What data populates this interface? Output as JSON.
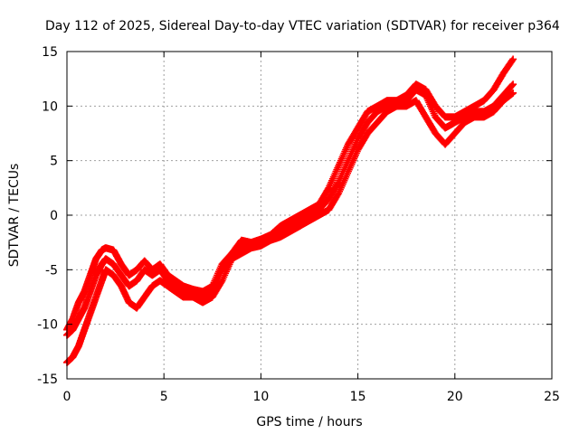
{
  "chart_data": {
    "type": "scatter",
    "title": "Day 112 of 2025, Sidereal Day-to-day VTEC variation (SDTVAR) for receiver p364",
    "xlabel": "GPS time / hours",
    "ylabel": "SDTVAR / TECUs",
    "xlim": [
      0,
      25
    ],
    "ylim": [
      -15,
      15
    ],
    "xticks": [
      "0",
      "5",
      "10",
      "15",
      "20",
      "25"
    ],
    "yticks": [
      "-15",
      "-10",
      "-5",
      "0",
      "5",
      "10",
      "15"
    ],
    "grid": true,
    "marker": "+",
    "color": "#ff0000",
    "series": [
      {
        "x": [
          0.0,
          0.3,
          0.6,
          0.9,
          1.2,
          1.5,
          1.8,
          2.0,
          2.4,
          2.8,
          3.2,
          3.6,
          4.0,
          4.4,
          4.8,
          5.2,
          5.6,
          6.0,
          6.5,
          7.0,
          7.5,
          8.0,
          8.5,
          9.0,
          9.5,
          10.0,
          10.5,
          11.0,
          11.5,
          12.0,
          12.5,
          13.0,
          13.5,
          14.0,
          14.5,
          15.0,
          15.5,
          16.0,
          16.5,
          17.0,
          17.5,
          18.0,
          18.5,
          19.0,
          19.5,
          20.0,
          20.5,
          21.0,
          21.5,
          22.0,
          22.5,
          23.0
        ],
        "y": [
          -11.0,
          -10.5,
          -9.5,
          -8.5,
          -7.0,
          -5.5,
          -4.5,
          -4.0,
          -4.5,
          -5.5,
          -6.5,
          -6.0,
          -5.0,
          -5.5,
          -5.0,
          -6.0,
          -6.5,
          -7.0,
          -7.2,
          -7.5,
          -7.0,
          -5.0,
          -4.0,
          -3.0,
          -2.8,
          -2.5,
          -2.0,
          -1.5,
          -1.0,
          -0.5,
          0.0,
          0.5,
          1.5,
          3.0,
          5.0,
          7.0,
          8.5,
          9.5,
          10.0,
          10.0,
          10.5,
          11.5,
          11.0,
          9.0,
          8.0,
          8.5,
          9.0,
          9.5,
          9.5,
          10.0,
          11.0,
          12.0
        ]
      },
      {
        "x": [
          0.0,
          0.3,
          0.6,
          0.9,
          1.2,
          1.5,
          1.8,
          2.0,
          2.4,
          2.8,
          3.2,
          3.6,
          4.0,
          4.4,
          4.8,
          5.2,
          5.6,
          6.0,
          6.5,
          7.0,
          7.5,
          8.0,
          8.5,
          9.0,
          9.5,
          10.0,
          10.5,
          11.0,
          11.5,
          12.0,
          12.5,
          13.0,
          13.5,
          14.0,
          14.5,
          15.0,
          15.5,
          16.0,
          16.5,
          17.0,
          17.5,
          18.0,
          18.5,
          19.0,
          19.5,
          20.0,
          20.5,
          21.0,
          21.5,
          22.0,
          22.5,
          23.0
        ],
        "y": [
          -13.5,
          -13.0,
          -12.0,
          -10.5,
          -9.0,
          -7.5,
          -6.0,
          -5.0,
          -5.5,
          -6.5,
          -8.0,
          -8.5,
          -7.5,
          -6.5,
          -6.0,
          -6.5,
          -7.0,
          -7.5,
          -7.5,
          -8.0,
          -7.5,
          -6.0,
          -4.0,
          -3.5,
          -3.0,
          -2.8,
          -2.3,
          -2.0,
          -1.5,
          -1.0,
          -0.5,
          0.0,
          0.5,
          2.0,
          4.0,
          6.0,
          7.5,
          8.5,
          9.5,
          10.0,
          10.0,
          10.5,
          9.0,
          7.5,
          6.5,
          7.5,
          8.5,
          9.0,
          9.0,
          9.5,
          10.5,
          11.2
        ]
      },
      {
        "x": [
          0.0,
          0.3,
          0.6,
          0.9,
          1.2,
          1.5,
          1.8,
          2.0,
          2.4,
          2.8,
          3.2,
          3.6,
          4.0,
          4.4,
          4.8,
          5.2,
          5.6,
          6.0,
          6.5,
          7.0,
          7.5,
          8.0,
          8.5,
          9.0,
          9.5,
          10.0,
          10.5,
          11.0,
          11.5,
          12.0,
          12.5,
          13.0,
          13.5,
          14.0,
          14.5,
          15.0,
          15.5,
          16.0,
          16.5,
          17.0,
          17.5,
          18.0,
          18.5,
          19.0,
          19.5,
          20.0,
          20.5,
          21.0,
          21.5,
          22.0,
          22.5,
          23.0
        ],
        "y": [
          -10.5,
          -9.5,
          -8.0,
          -7.0,
          -5.5,
          -4.0,
          -3.2,
          -3.0,
          -3.2,
          -4.5,
          -5.5,
          -5.0,
          -4.2,
          -5.0,
          -4.5,
          -5.5,
          -6.0,
          -6.5,
          -6.8,
          -7.0,
          -6.5,
          -4.5,
          -3.5,
          -2.3,
          -2.5,
          -2.2,
          -1.8,
          -1.0,
          -0.5,
          0.0,
          0.5,
          1.0,
          2.5,
          4.5,
          6.5,
          8.0,
          9.5,
          10.0,
          10.5,
          10.5,
          11.0,
          12.0,
          11.5,
          10.0,
          9.0,
          9.0,
          9.5,
          10.0,
          10.5,
          11.5,
          13.0,
          14.3
        ]
      }
    ]
  }
}
